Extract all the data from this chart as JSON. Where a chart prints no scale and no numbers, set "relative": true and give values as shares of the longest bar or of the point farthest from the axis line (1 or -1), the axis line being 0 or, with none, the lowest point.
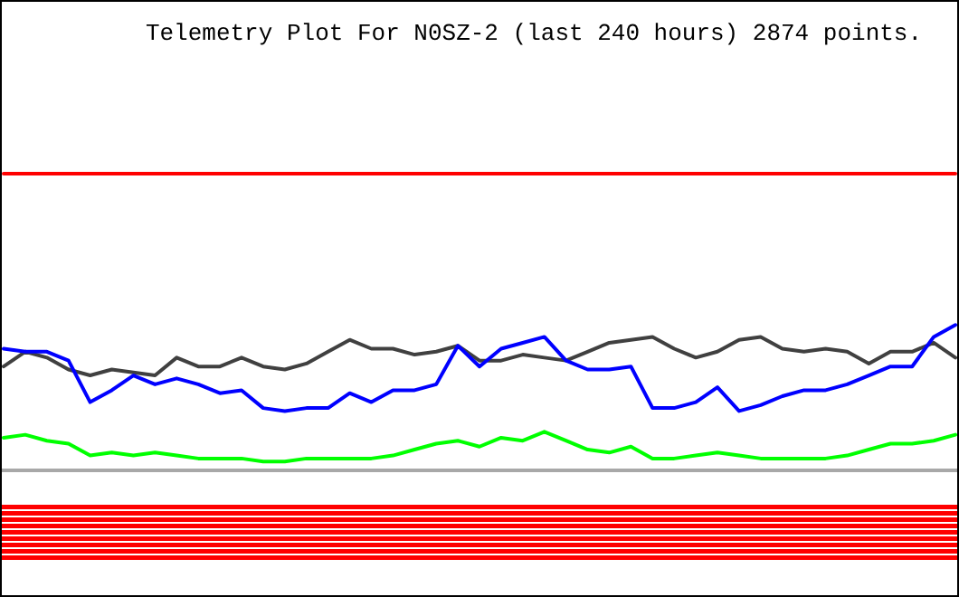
{
  "chart_data": {
    "type": "line",
    "title": "Telemetry Plot For N0SZ-2 (last 240 hours) 2874 points.",
    "relative": true,
    "categories": [
      null,
      null,
      null,
      null,
      null,
      null,
      null,
      null,
      null,
      null,
      null,
      null,
      null,
      null,
      null,
      null,
      null,
      null,
      null,
      null,
      null,
      null,
      null,
      null,
      null,
      null,
      null,
      null,
      null,
      null,
      null,
      null,
      null,
      null,
      null,
      null,
      null,
      null,
      null,
      null,
      null,
      null,
      null,
      null,
      null
    ],
    "series": [
      {
        "color": "#ff0000",
        "values": [
          1,
          1,
          1,
          1,
          1,
          1,
          1,
          1,
          1,
          1,
          1,
          1,
          1,
          1,
          1,
          1,
          1,
          1,
          1,
          1,
          1,
          1,
          1,
          1,
          1,
          1,
          1,
          1,
          1,
          1,
          1,
          1,
          1,
          1,
          1,
          1,
          1,
          1,
          1,
          1,
          1,
          1,
          1,
          1,
          1
        ]
      },
      {
        "color": "#404040",
        "values": [
          0.35,
          0.4,
          0.38,
          0.34,
          0.32,
          0.34,
          0.33,
          0.32,
          0.38,
          0.35,
          0.35,
          0.38,
          0.35,
          0.34,
          0.36,
          0.4,
          0.44,
          0.41,
          0.41,
          0.39,
          0.4,
          0.42,
          0.37,
          0.37,
          0.39,
          0.38,
          0.37,
          0.4,
          0.43,
          0.44,
          0.45,
          0.41,
          0.38,
          0.4,
          0.44,
          0.45,
          0.41,
          0.4,
          0.41,
          0.4,
          0.36,
          0.4,
          0.4,
          0.43,
          0.38
        ]
      },
      {
        "color": "#0000ff",
        "values": [
          0.41,
          0.4,
          0.4,
          0.37,
          0.23,
          0.27,
          0.32,
          0.29,
          0.31,
          0.29,
          0.26,
          0.27,
          0.21,
          0.2,
          0.21,
          0.21,
          0.26,
          0.23,
          0.27,
          0.27,
          0.29,
          0.42,
          0.35,
          0.41,
          0.43,
          0.45,
          0.37,
          0.34,
          0.34,
          0.35,
          0.21,
          0.21,
          0.23,
          0.28,
          0.2,
          0.22,
          0.25,
          0.27,
          0.27,
          0.29,
          0.32,
          0.35,
          0.35,
          0.45,
          0.49
        ]
      },
      {
        "color": "#00ff00",
        "values": [
          0.11,
          0.12,
          0.1,
          0.09,
          0.05,
          0.06,
          0.05,
          0.06,
          0.05,
          0.04,
          0.04,
          0.04,
          0.03,
          0.03,
          0.04,
          0.04,
          0.04,
          0.04,
          0.05,
          0.07,
          0.09,
          0.1,
          0.08,
          0.11,
          0.1,
          0.13,
          0.1,
          0.07,
          0.06,
          0.08,
          0.04,
          0.04,
          0.05,
          0.06,
          0.05,
          0.04,
          0.04,
          0.04,
          0.04,
          0.05,
          0.07,
          0.09,
          0.09,
          0.1,
          0.12
        ]
      }
    ]
  }
}
